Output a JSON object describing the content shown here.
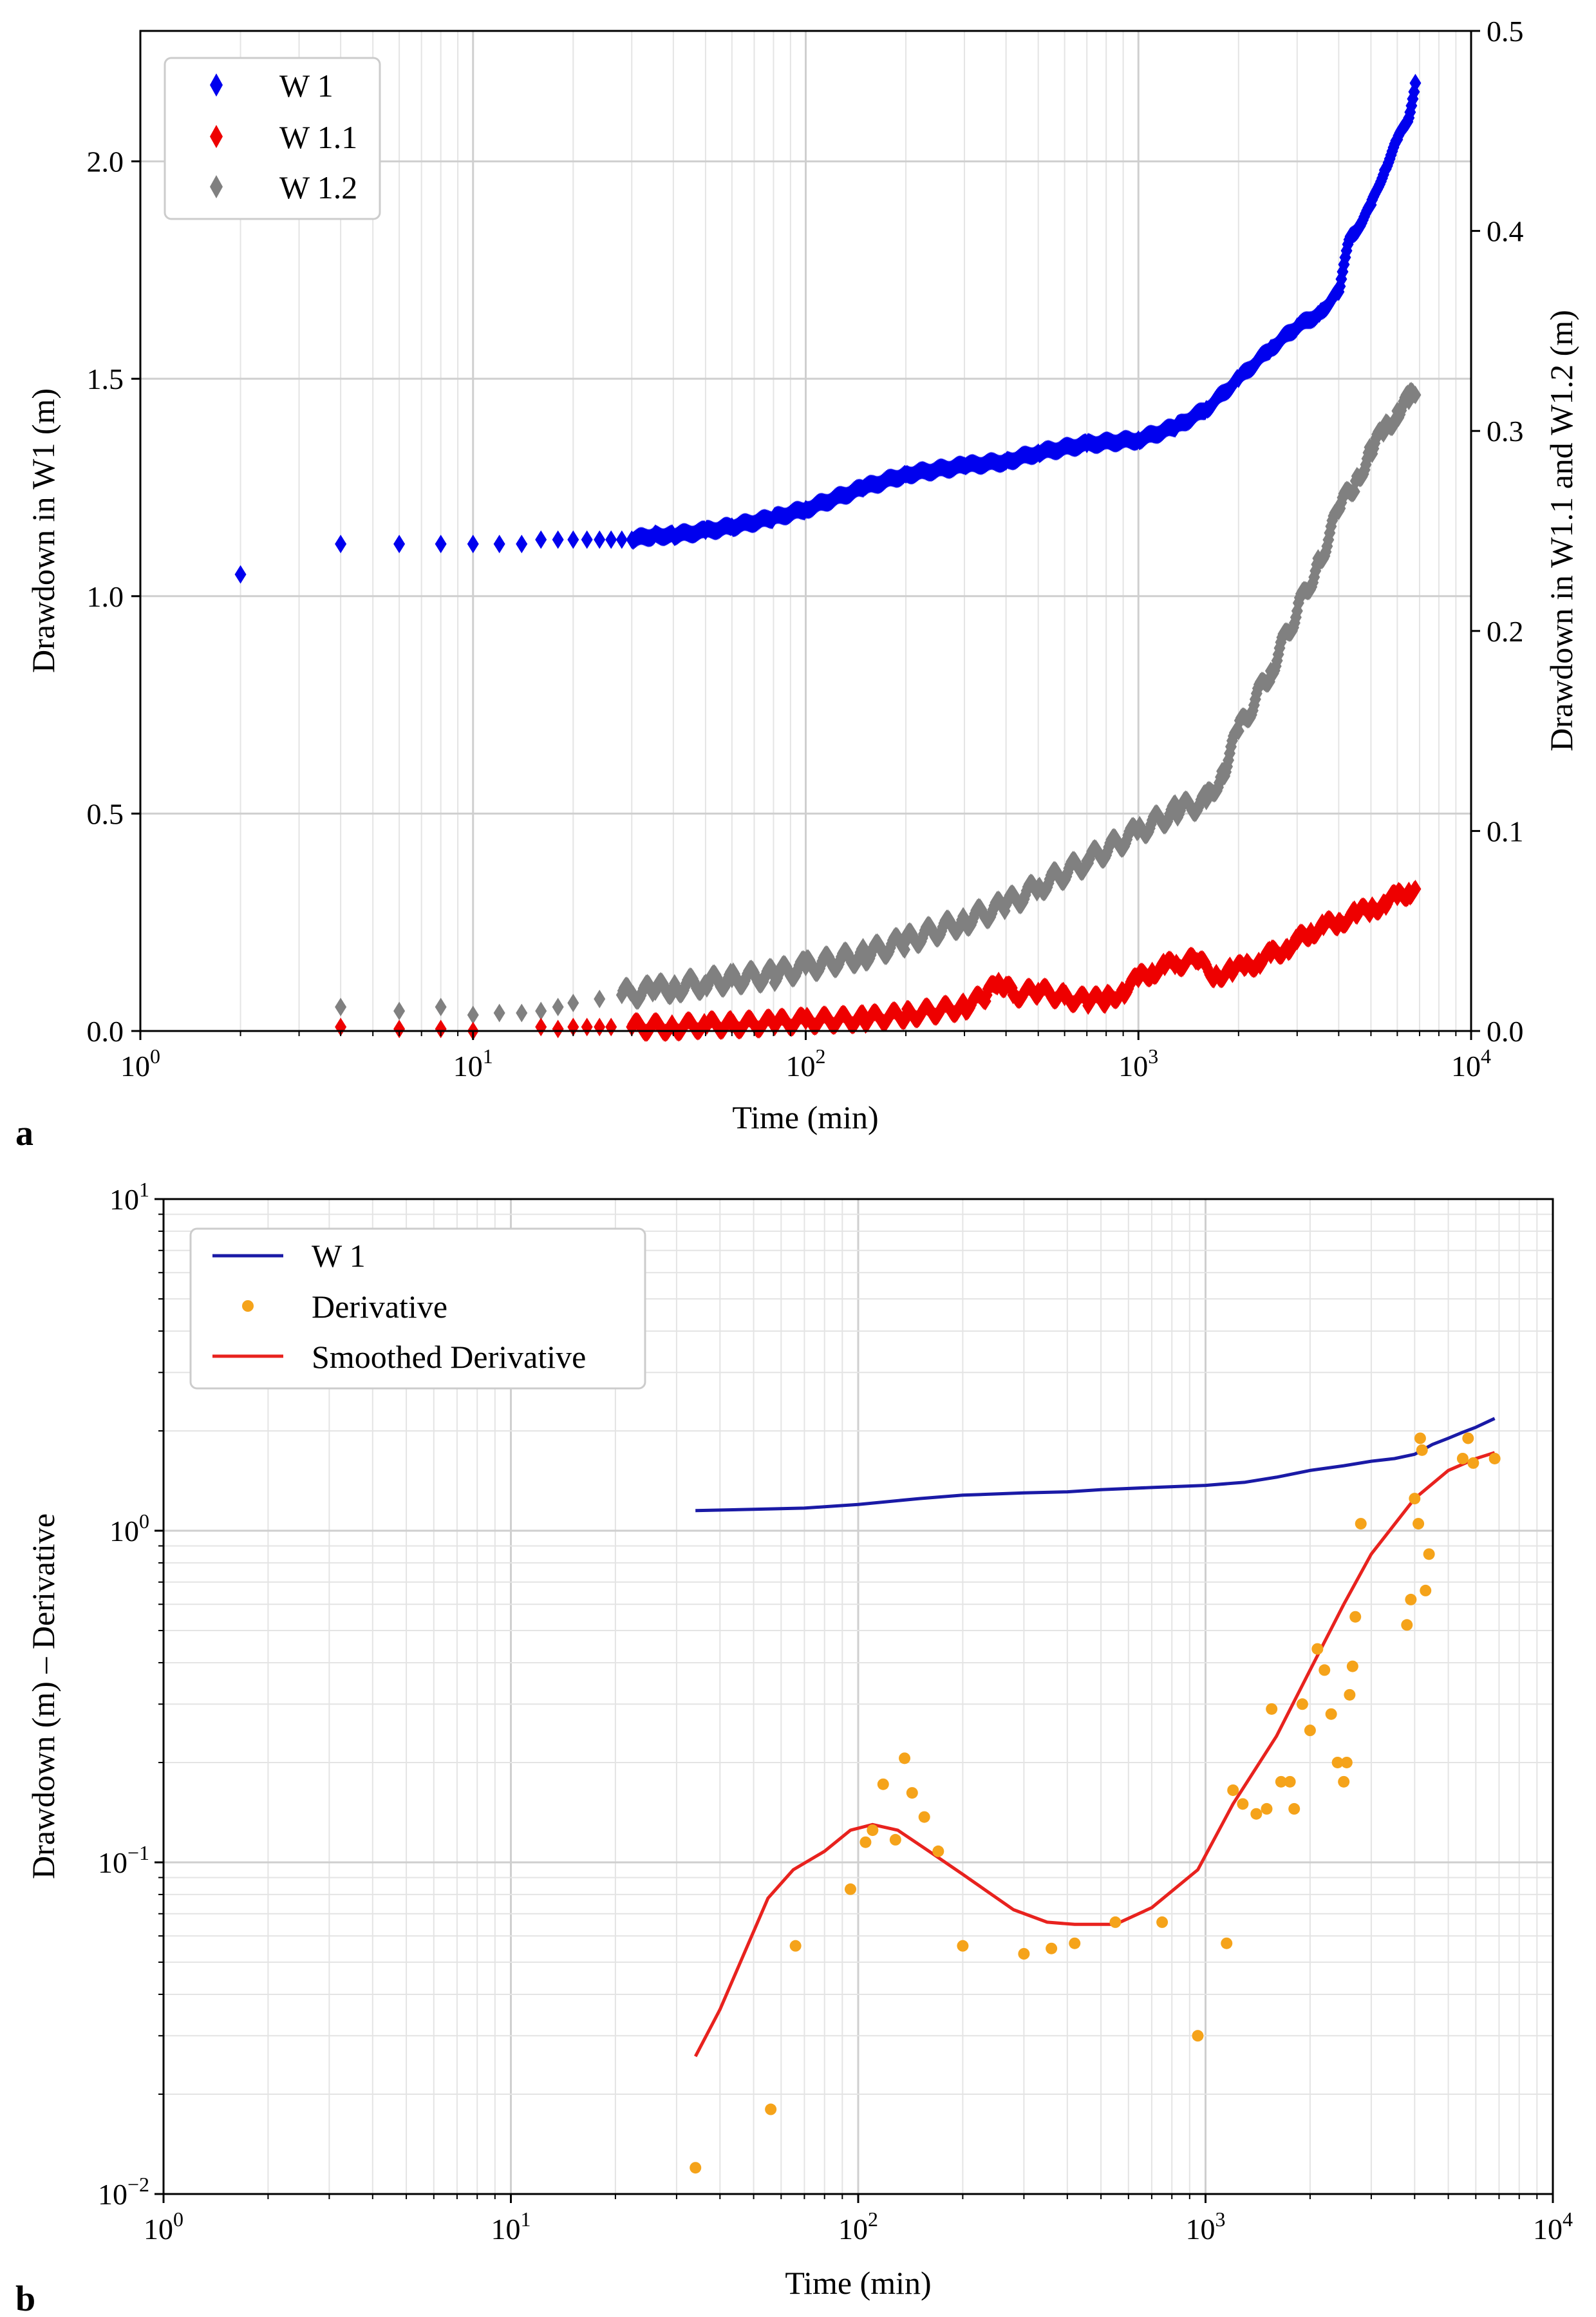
{
  "chart_data": [
    {
      "panel_label": "a",
      "type": "scatter",
      "xscale": "log",
      "xlim": [
        1,
        10000
      ],
      "ylim_left": [
        0,
        2.3
      ],
      "ylim_right": [
        0,
        0.5
      ],
      "xlabel": "Time (min)",
      "ylabel_left": "Drawdown in W1 (m)",
      "ylabel_right": "Drawdown in W1.1 and W1.2 (m)",
      "x_ticks": [
        {
          "base": "10",
          "exp": "0"
        },
        {
          "base": "10",
          "exp": "1"
        },
        {
          "base": "10",
          "exp": "2"
        },
        {
          "base": "10",
          "exp": "3"
        },
        {
          "base": "10",
          "exp": "4"
        }
      ],
      "y_ticks_left": [
        "0.0",
        "0.5",
        "1.0",
        "1.5",
        "2.0"
      ],
      "y_ticks_right": [
        "0.0",
        "0.1",
        "0.2",
        "0.3",
        "0.4",
        "0.5"
      ],
      "legend_position": "top-left",
      "series": [
        {
          "name": "W 1",
          "axis": "left",
          "marker": "diamond",
          "color": "#0000ee",
          "x": [
            2,
            4,
            6,
            8,
            10,
            12,
            14,
            16,
            18,
            20,
            22,
            24,
            26,
            28,
            30,
            35,
            40,
            50,
            60,
            80,
            100,
            150,
            200,
            300,
            400,
            500,
            700,
            1000,
            1300,
            1600,
            2000,
            2500,
            3000,
            3500,
            4000,
            4300,
            4600,
            5000,
            5500,
            6000,
            6500,
            6800
          ],
          "y": [
            1.05,
            1.12,
            1.12,
            1.12,
            1.12,
            1.12,
            1.12,
            1.13,
            1.13,
            1.13,
            1.13,
            1.13,
            1.13,
            1.13,
            1.13,
            1.14,
            1.14,
            1.15,
            1.16,
            1.18,
            1.2,
            1.25,
            1.28,
            1.3,
            1.31,
            1.33,
            1.35,
            1.36,
            1.39,
            1.43,
            1.5,
            1.57,
            1.62,
            1.65,
            1.7,
            1.82,
            1.85,
            1.9,
            1.98,
            2.05,
            2.1,
            2.18
          ]
        },
        {
          "name": "W 1.1",
          "axis": "right",
          "marker": "diamond",
          "color": "#ee0000",
          "x": [
            4,
            6,
            8,
            10,
            16,
            18,
            20,
            22,
            24,
            26,
            30,
            40,
            50,
            60,
            80,
            100,
            150,
            200,
            300,
            350,
            380,
            400,
            420,
            500,
            600,
            700,
            800,
            900,
            1000,
            1100,
            1200,
            1300,
            1500,
            1700,
            1900,
            2100,
            2300,
            2500,
            2800,
            3000,
            3300,
            3600,
            4000,
            4500,
            5000,
            5500,
            6000,
            6500,
            6800
          ],
          "y": [
            0.002,
            0.001,
            0.001,
            0.0,
            0.002,
            0.001,
            0.002,
            0.002,
            0.002,
            0.002,
            0.002,
            0.002,
            0.003,
            0.003,
            0.004,
            0.005,
            0.006,
            0.008,
            0.012,
            0.018,
            0.025,
            0.023,
            0.018,
            0.02,
            0.017,
            0.015,
            0.016,
            0.02,
            0.026,
            0.03,
            0.032,
            0.034,
            0.035,
            0.028,
            0.03,
            0.032,
            0.035,
            0.038,
            0.042,
            0.045,
            0.05,
            0.052,
            0.055,
            0.058,
            0.061,
            0.064,
            0.067,
            0.07,
            0.071
          ]
        },
        {
          "name": "W 1.2",
          "axis": "right",
          "marker": "diamond",
          "color": "#808080",
          "x": [
            4,
            6,
            8,
            10,
            12,
            14,
            16,
            18,
            20,
            24,
            28,
            30,
            35,
            40,
            50,
            60,
            80,
            100,
            150,
            200,
            300,
            400,
            500,
            700,
            1000,
            1300,
            1600,
            1800,
            2000,
            2500,
            3000,
            3500,
            4000,
            4500,
            5000,
            5500,
            6000,
            6500,
            6800
          ],
          "y": [
            0.012,
            0.01,
            0.012,
            0.008,
            0.009,
            0.009,
            0.01,
            0.012,
            0.014,
            0.016,
            0.018,
            0.019,
            0.02,
            0.022,
            0.024,
            0.026,
            0.028,
            0.032,
            0.038,
            0.045,
            0.055,
            0.063,
            0.072,
            0.085,
            0.1,
            0.11,
            0.115,
            0.13,
            0.15,
            0.18,
            0.21,
            0.235,
            0.26,
            0.275,
            0.29,
            0.3,
            0.31,
            0.315,
            0.318
          ]
        }
      ]
    },
    {
      "panel_label": "b",
      "type": "line",
      "xscale": "log",
      "yscale": "log",
      "xlim": [
        1,
        10000
      ],
      "ylim": [
        0.01,
        10
      ],
      "xlabel": "Time (min)",
      "ylabel": "Drawdown (m) – Derivative",
      "x_ticks": [
        {
          "base": "10",
          "exp": "0"
        },
        {
          "base": "10",
          "exp": "1"
        },
        {
          "base": "10",
          "exp": "2"
        },
        {
          "base": "10",
          "exp": "3"
        },
        {
          "base": "10",
          "exp": "4"
        }
      ],
      "y_ticks": [
        {
          "base": "10",
          "exp": "−2"
        },
        {
          "base": "10",
          "exp": "−1"
        },
        {
          "base": "10",
          "exp": "0"
        },
        {
          "base": "10",
          "exp": "1"
        }
      ],
      "legend_position": "top-left",
      "series": [
        {
          "name": "W 1",
          "kind": "line",
          "color": "#1a1aa6",
          "x": [
            34,
            50,
            70,
            100,
            150,
            200,
            300,
            400,
            500,
            700,
            1000,
            1300,
            1600,
            2000,
            2500,
            3000,
            3500,
            4000,
            4500,
            5000,
            5500,
            6000,
            6800
          ],
          "y": [
            1.15,
            1.16,
            1.17,
            1.2,
            1.25,
            1.28,
            1.3,
            1.31,
            1.33,
            1.35,
            1.37,
            1.4,
            1.45,
            1.52,
            1.57,
            1.62,
            1.65,
            1.7,
            1.82,
            1.9,
            1.98,
            2.05,
            2.18
          ]
        },
        {
          "name": "Derivative",
          "kind": "scatter",
          "color": "#f5a31a",
          "x": [
            34,
            56,
            66,
            95,
            105,
            110,
            118,
            128,
            136,
            143,
            155,
            170,
            200,
            300,
            360,
            420,
            550,
            750,
            950,
            1150,
            1200,
            1280,
            1400,
            1500,
            1550,
            1650,
            1750,
            1800,
            1900,
            2000,
            2100,
            2200,
            2300,
            2400,
            2500,
            2550,
            2600,
            2650,
            2700,
            2800,
            3800,
            3900,
            4000,
            4100,
            4150,
            4200,
            4300,
            4400,
            5500,
            5700,
            5900,
            6800
          ],
          "y": [
            0.012,
            0.018,
            0.056,
            0.083,
            0.115,
            0.125,
            0.172,
            0.117,
            0.206,
            0.162,
            0.137,
            0.108,
            0.056,
            0.053,
            0.055,
            0.057,
            0.066,
            0.066,
            0.03,
            0.057,
            0.165,
            0.15,
            0.14,
            0.145,
            0.29,
            0.175,
            0.175,
            0.145,
            0.3,
            0.25,
            0.44,
            0.38,
            0.28,
            0.2,
            0.175,
            0.2,
            0.32,
            0.39,
            0.55,
            1.05,
            0.52,
            0.62,
            1.25,
            1.05,
            1.9,
            1.75,
            0.66,
            0.85,
            1.65,
            1.9,
            1.6,
            1.65
          ]
        },
        {
          "name": "Smoothed Derivative",
          "kind": "line",
          "color": "#e8221e",
          "x": [
            34,
            40,
            55,
            65,
            80,
            95,
            110,
            130,
            160,
            200,
            280,
            350,
            420,
            550,
            700,
            950,
            1200,
            1600,
            2000,
            2500,
            3000,
            4000,
            5000,
            6000,
            6800
          ],
          "y": [
            0.026,
            0.036,
            0.078,
            0.095,
            0.108,
            0.125,
            0.13,
            0.125,
            0.108,
            0.092,
            0.072,
            0.066,
            0.065,
            0.065,
            0.073,
            0.095,
            0.15,
            0.24,
            0.38,
            0.6,
            0.85,
            1.25,
            1.52,
            1.65,
            1.72
          ]
        }
      ]
    }
  ]
}
